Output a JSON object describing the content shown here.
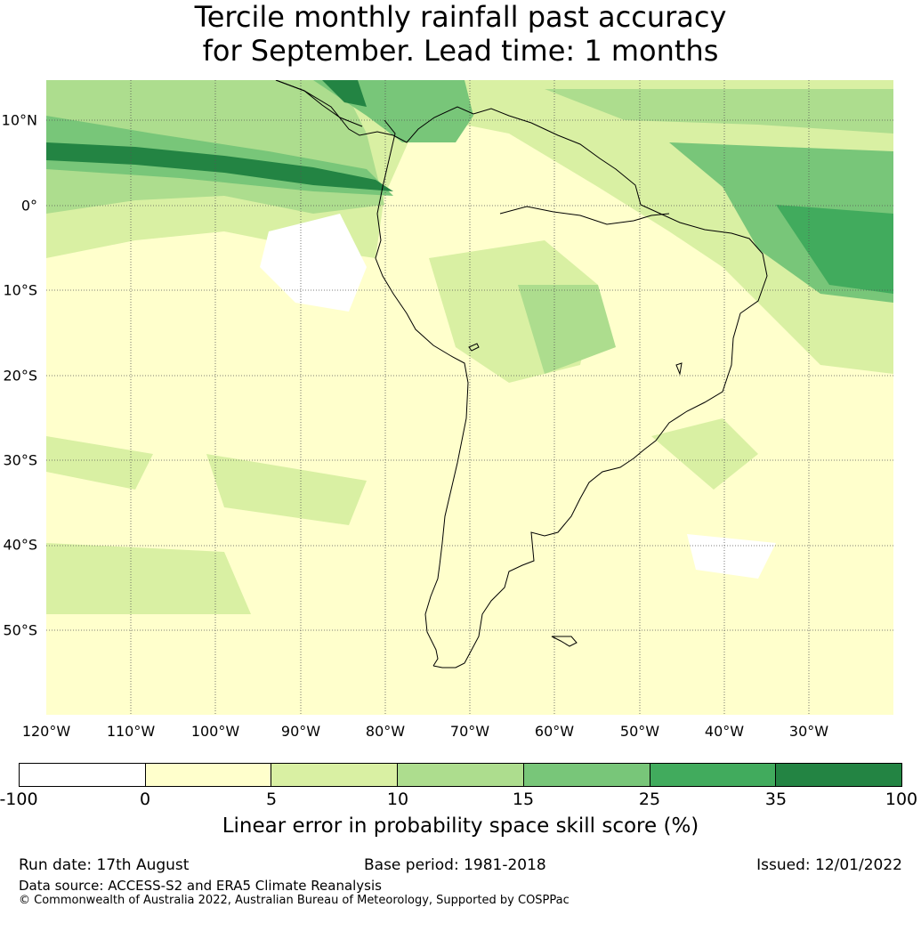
{
  "title": {
    "line1": "Tercile monthly rainfall past accuracy",
    "line2": "for September. Lead time: 1 months"
  },
  "map": {
    "lat_labels": [
      "10°N",
      "0°",
      "10°S",
      "20°S",
      "30°S",
      "40°S",
      "50°S"
    ],
    "lon_labels": [
      "120°W",
      "110°W",
      "100°W",
      "90°W",
      "80°W",
      "70°W",
      "60°W",
      "50°W",
      "40°W",
      "30°W"
    ]
  },
  "colorbar": {
    "ticks": [
      "-100",
      "0",
      "5",
      "10",
      "15",
      "25",
      "35",
      "100"
    ],
    "colors": [
      "#ffffff",
      "#ffffcc",
      "#d9f0a3",
      "#addd8e",
      "#78c679",
      "#41ab5d",
      "#238443"
    ],
    "label": "Linear error in probability space skill score (%)"
  },
  "footer": {
    "run_date": "Run date: 17th August",
    "base_period": "Base period: 1981-2018",
    "issued": "Issued: 12/01/2022",
    "data_source": "Data source: ACCESS-S2 and ERA5 Climate Reanalysis",
    "copyright": "© Commonwealth of Australia 2022, Australian Bureau of Meteorology, Supported by COSPPac"
  }
}
